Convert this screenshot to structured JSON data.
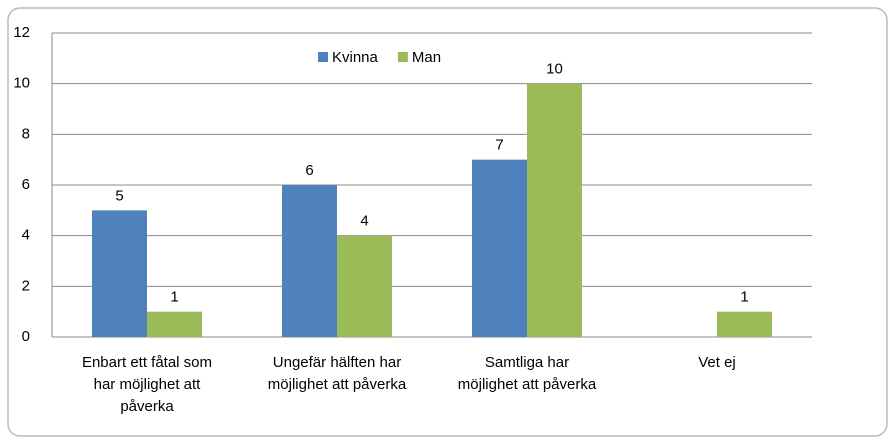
{
  "chart_data": {
    "type": "bar",
    "categories": [
      "Enbart ett fåtal som\nhar möjlighet att\npåverka",
      "Ungefär hälften har\nmöjlighet att påverka",
      "Samtliga har\nmöjlighet att påverka",
      "Vet ej"
    ],
    "series": [
      {
        "name": "Kvinna",
        "color": "#4f81bd",
        "values": [
          5,
          6,
          7,
          null
        ]
      },
      {
        "name": "Man",
        "color": "#9bbb59",
        "values": [
          1,
          4,
          10,
          1
        ]
      }
    ],
    "ylim": [
      0,
      12
    ],
    "yticks": [
      0,
      2,
      4,
      6,
      8,
      10,
      12
    ],
    "grid": true,
    "legend": "top"
  }
}
